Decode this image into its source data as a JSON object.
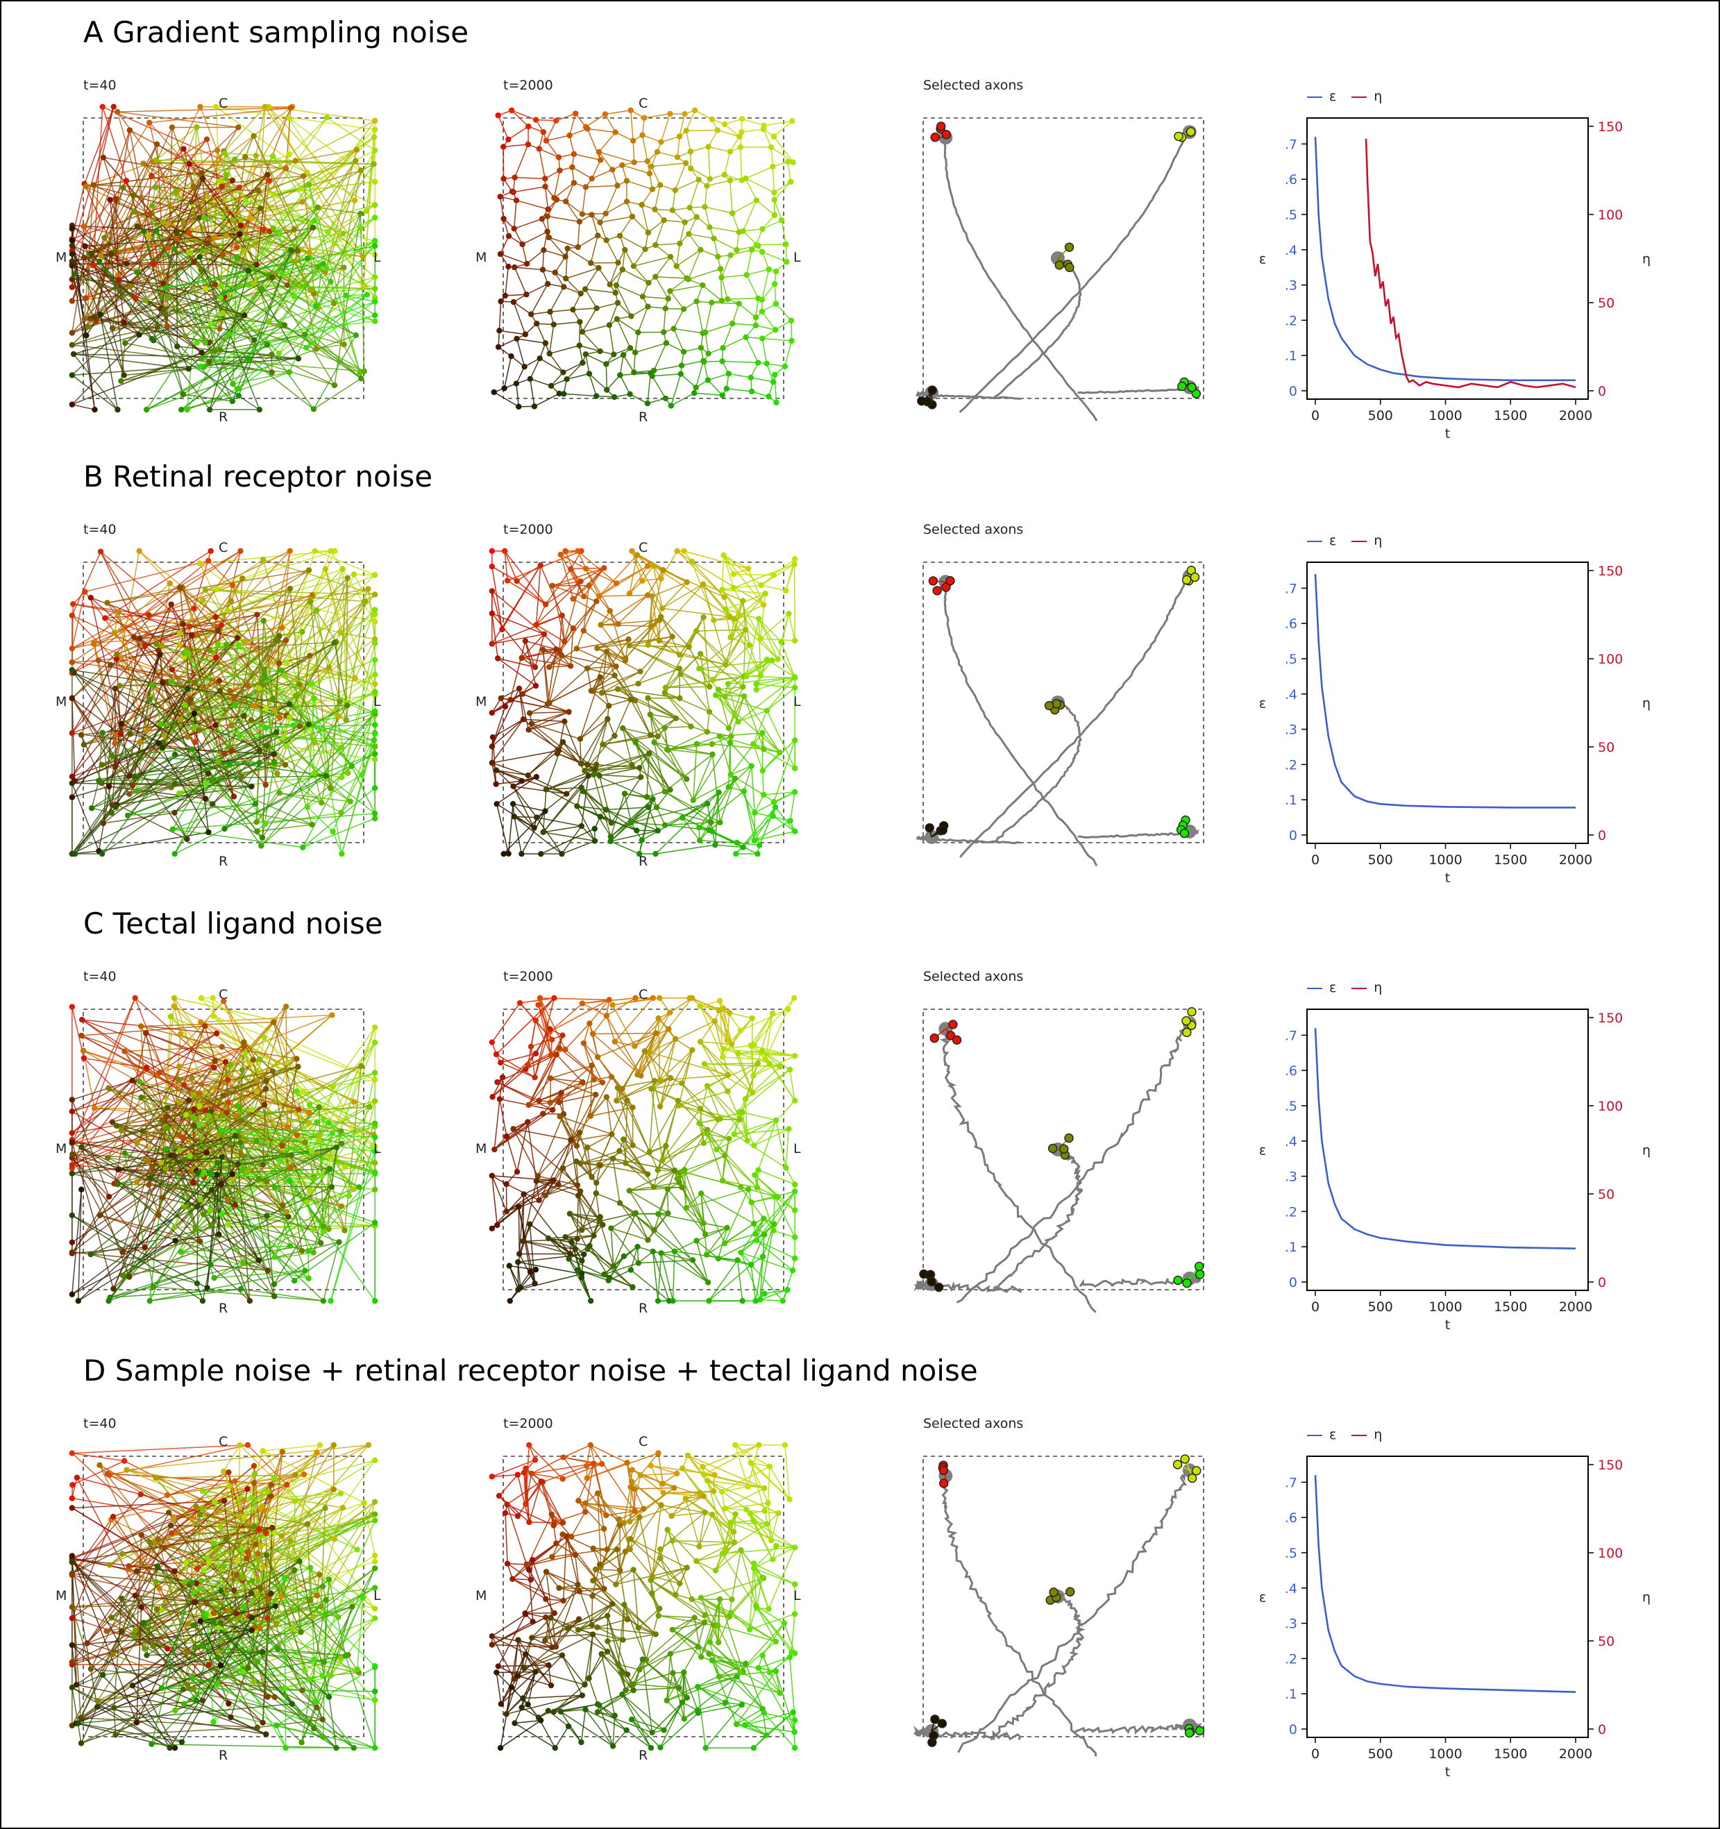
{
  "rows": [
    {
      "title": "A  Gradient sampling noise",
      "t_start_label": "t=40",
      "t_end_label": "t=2000",
      "axons_label": "Selected axons",
      "dir": {
        "top": "C",
        "bottom": "R",
        "left": "M",
        "right": "L"
      },
      "chart_data": {
        "type": "line",
        "x_label": "t",
        "y_left_label": "ε",
        "y_right_label": "η",
        "x_ticks": [
          "0",
          "500",
          "1000",
          "1500",
          "2000"
        ],
        "y_left_ticks": [
          "0",
          ".1",
          ".2",
          ".3",
          ".4",
          ".5",
          ".6",
          ".7"
        ],
        "y_right_ticks": [
          "0",
          "50",
          "100",
          "150"
        ],
        "xlim": [
          0,
          2000
        ],
        "ylim_left": [
          0,
          0.75
        ],
        "ylim_right": [
          0,
          150
        ],
        "series": [
          {
            "name": "ε",
            "axis": "left",
            "color": "#3a5fcd",
            "x": [
              0,
              25,
              50,
              100,
              150,
              200,
              300,
              400,
              500,
              600,
              700,
              800,
              1000,
              1200,
              1500,
              1800,
              2000
            ],
            "y": [
              0.72,
              0.5,
              0.38,
              0.26,
              0.19,
              0.15,
              0.1,
              0.075,
              0.06,
              0.05,
              0.045,
              0.04,
              0.035,
              0.032,
              0.03,
              0.03,
              0.03
            ]
          },
          {
            "name": "η",
            "axis": "right",
            "color": "#c8102e",
            "x": [
              390,
              400,
              420,
              440,
              460,
              480,
              500,
              520,
              540,
              560,
              580,
              600,
              620,
              640,
              660,
              680,
              700,
              720,
              750,
              800,
              850,
              900,
              1000,
              1100,
              1200,
              1300,
              1400,
              1500,
              1600,
              1700,
              1800,
              1900,
              2000
            ],
            "y": [
              143,
              120,
              85,
              78,
              65,
              72,
              58,
              62,
              48,
              52,
              38,
              42,
              30,
              32,
              22,
              15,
              8,
              5,
              6,
              3,
              5,
              4,
              3,
              2,
              4,
              3,
              2,
              5,
              3,
              2,
              3,
              4,
              2
            ]
          }
        ]
      }
    },
    {
      "title": "B  Retinal receptor noise",
      "t_start_label": "t=40",
      "t_end_label": "t=2000",
      "axons_label": "Selected axons",
      "dir": {
        "top": "C",
        "bottom": "R",
        "left": "M",
        "right": "L"
      },
      "chart_data": {
        "type": "line",
        "x_label": "t",
        "y_left_label": "ε",
        "y_right_label": "η",
        "x_ticks": [
          "0",
          "500",
          "1000",
          "1500",
          "2000"
        ],
        "y_left_ticks": [
          "0",
          ".1",
          ".2",
          ".3",
          ".4",
          ".5",
          ".6",
          ".7"
        ],
        "y_right_ticks": [
          "0",
          "50",
          "100",
          "150"
        ],
        "xlim": [
          0,
          2000
        ],
        "ylim_left": [
          0,
          0.75
        ],
        "ylim_right": [
          0,
          150
        ],
        "series": [
          {
            "name": "ε",
            "axis": "left",
            "color": "#3a5fcd",
            "x": [
              0,
              25,
              50,
              100,
              150,
              200,
              300,
              400,
              500,
              700,
              1000,
              1500,
              2000
            ],
            "y": [
              0.74,
              0.55,
              0.42,
              0.28,
              0.2,
              0.15,
              0.11,
              0.095,
              0.088,
              0.083,
              0.08,
              0.078,
              0.078
            ]
          },
          {
            "name": "η",
            "axis": "right",
            "color": "#c8102e",
            "x": [],
            "y": []
          }
        ]
      }
    },
    {
      "title": "C  Tectal ligand noise",
      "t_start_label": "t=40",
      "t_end_label": "t=2000",
      "axons_label": "Selected axons",
      "dir": {
        "top": "C",
        "bottom": "R",
        "left": "M",
        "right": "L"
      },
      "chart_data": {
        "type": "line",
        "x_label": "t",
        "y_left_label": "ε",
        "y_right_label": "η",
        "x_ticks": [
          "0",
          "500",
          "1000",
          "1500",
          "2000"
        ],
        "y_left_ticks": [
          "0",
          ".1",
          ".2",
          ".3",
          ".4",
          ".5",
          ".6",
          ".7"
        ],
        "y_right_ticks": [
          "0",
          "50",
          "100",
          "150"
        ],
        "xlim": [
          0,
          2000
        ],
        "ylim_left": [
          0,
          0.75
        ],
        "ylim_right": [
          0,
          150
        ],
        "series": [
          {
            "name": "ε",
            "axis": "left",
            "color": "#3a5fcd",
            "x": [
              0,
              25,
              50,
              100,
              150,
              200,
              300,
              400,
              500,
              700,
              1000,
              1500,
              2000
            ],
            "y": [
              0.72,
              0.52,
              0.4,
              0.28,
              0.22,
              0.18,
              0.15,
              0.135,
              0.125,
              0.115,
              0.105,
              0.098,
              0.095
            ]
          },
          {
            "name": "η",
            "axis": "right",
            "color": "#c8102e",
            "x": [],
            "y": []
          }
        ]
      }
    },
    {
      "title": "D  Sample noise + retinal receptor noise + tectal ligand noise",
      "t_start_label": "t=40",
      "t_end_label": "t=2000",
      "axons_label": "Selected axons",
      "dir": {
        "top": "C",
        "bottom": "R",
        "left": "M",
        "right": "L"
      },
      "chart_data": {
        "type": "line",
        "x_label": "t",
        "y_left_label": "ε",
        "y_right_label": "η",
        "x_ticks": [
          "0",
          "500",
          "1000",
          "1500",
          "2000"
        ],
        "y_left_ticks": [
          "0",
          ".1",
          ".2",
          ".3",
          ".4",
          ".5",
          ".6",
          ".7"
        ],
        "y_right_ticks": [
          "0",
          "50",
          "100",
          "150"
        ],
        "xlim": [
          0,
          2000
        ],
        "ylim_left": [
          0,
          0.75
        ],
        "ylim_right": [
          0,
          150
        ],
        "series": [
          {
            "name": "ε",
            "axis": "left",
            "color": "#3a5fcd",
            "x": [
              0,
              25,
              50,
              100,
              150,
              200,
              300,
              400,
              500,
              700,
              1000,
              1500,
              2000
            ],
            "y": [
              0.72,
              0.52,
              0.4,
              0.28,
              0.22,
              0.18,
              0.15,
              0.135,
              0.128,
              0.12,
              0.115,
              0.11,
              0.105
            ]
          },
          {
            "name": "η",
            "axis": "right",
            "color": "#c8102e",
            "x": [],
            "y": []
          }
        ]
      }
    }
  ]
}
